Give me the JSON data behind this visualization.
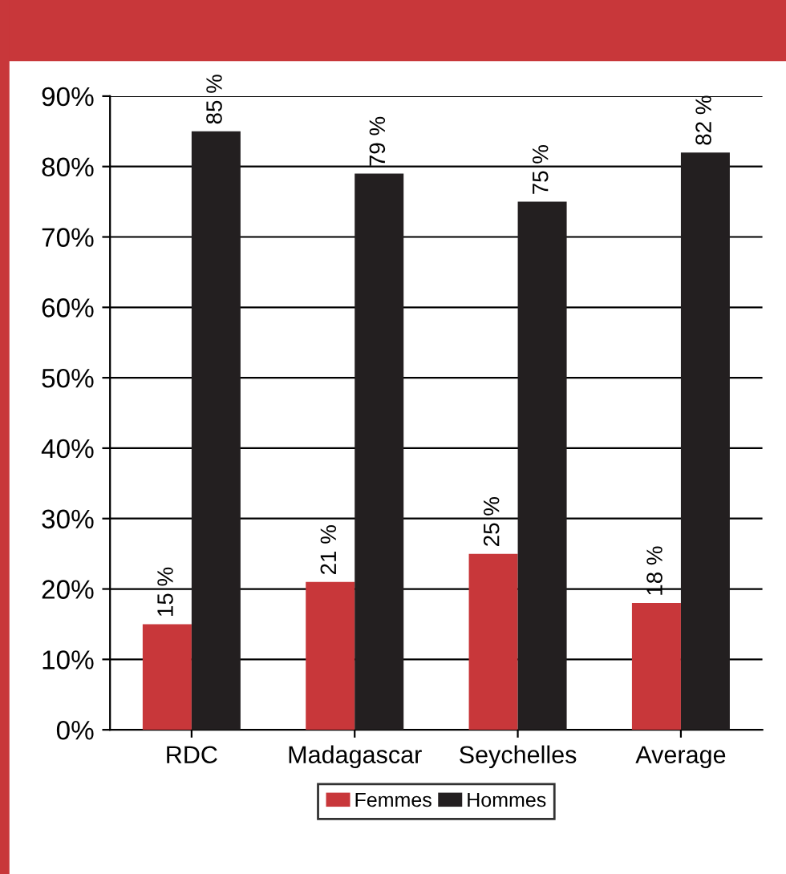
{
  "chart_data": {
    "type": "bar",
    "categories": [
      "RDC",
      "Madagascar",
      "Seychelles",
      "Average"
    ],
    "series": [
      {
        "name": "Femmes",
        "color": "#c8373a",
        "values": [
          15,
          21,
          25,
          18
        ],
        "value_labels": [
          "15 %",
          "21 %",
          "25 %",
          "18 %"
        ]
      },
      {
        "name": "Hommes",
        "color": "#231f20",
        "values": [
          85,
          79,
          75,
          82
        ],
        "value_labels": [
          "85 %",
          "79 %",
          "75 %",
          "82 %"
        ]
      }
    ],
    "ylim": [
      0,
      90
    ],
    "yticks": [
      {
        "value": 0,
        "label": "0%"
      },
      {
        "value": 10,
        "label": "10%"
      },
      {
        "value": 20,
        "label": "20%"
      },
      {
        "value": 30,
        "label": "30%"
      },
      {
        "value": 40,
        "label": "40%"
      },
      {
        "value": 50,
        "label": "50%"
      },
      {
        "value": 60,
        "label": "60%"
      },
      {
        "value": 70,
        "label": "70%"
      },
      {
        "value": 80,
        "label": "80%"
      },
      {
        "value": 90,
        "label": "90%"
      }
    ],
    "grid": "y",
    "legend": "bottom"
  }
}
